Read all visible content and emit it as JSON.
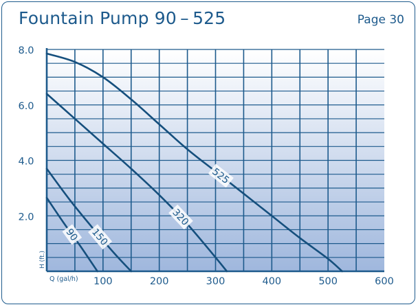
{
  "header": {
    "title": "Fountain Pump 90 – 525",
    "page": "Page 30"
  },
  "colors": {
    "accent": "#1d5a8c",
    "grid": "#1d5a8c",
    "curve": "#154f7d",
    "gradient_top": "#ffffff",
    "gradient_bottom": "#9fb7dd"
  },
  "chart_data": {
    "type": "line",
    "xlabel": "Q (gal/h)",
    "ylabel": "H (ft.)",
    "xlim": [
      0,
      600
    ],
    "ylim": [
      0,
      8
    ],
    "x_ticks": [
      100,
      200,
      300,
      400,
      500,
      600
    ],
    "x_tick_labels": [
      "100",
      "200",
      "300",
      "400",
      "500",
      "600"
    ],
    "y_ticks": [
      2,
      4,
      6,
      8
    ],
    "y_tick_labels": [
      "2.0",
      "4.0",
      "6.0",
      "8.0"
    ],
    "grid": true,
    "series": [
      {
        "name": "525",
        "x": [
          0,
          50,
          100,
          150,
          200,
          250,
          300,
          350,
          400,
          450,
          500,
          525
        ],
        "y": [
          7.85,
          7.55,
          7.0,
          6.2,
          5.3,
          4.4,
          3.6,
          2.8,
          2.0,
          1.2,
          0.45,
          0
        ]
      },
      {
        "name": "320",
        "x": [
          0,
          50,
          100,
          150,
          200,
          250,
          300,
          320
        ],
        "y": [
          6.4,
          5.5,
          4.6,
          3.7,
          2.75,
          1.7,
          0.5,
          0
        ]
      },
      {
        "name": "150",
        "x": [
          0,
          40,
          80,
          120,
          150
        ],
        "y": [
          3.7,
          2.6,
          1.6,
          0.65,
          0
        ]
      },
      {
        "name": "90",
        "x": [
          0,
          30,
          60,
          90
        ],
        "y": [
          2.65,
          1.75,
          0.9,
          0
        ]
      }
    ]
  }
}
